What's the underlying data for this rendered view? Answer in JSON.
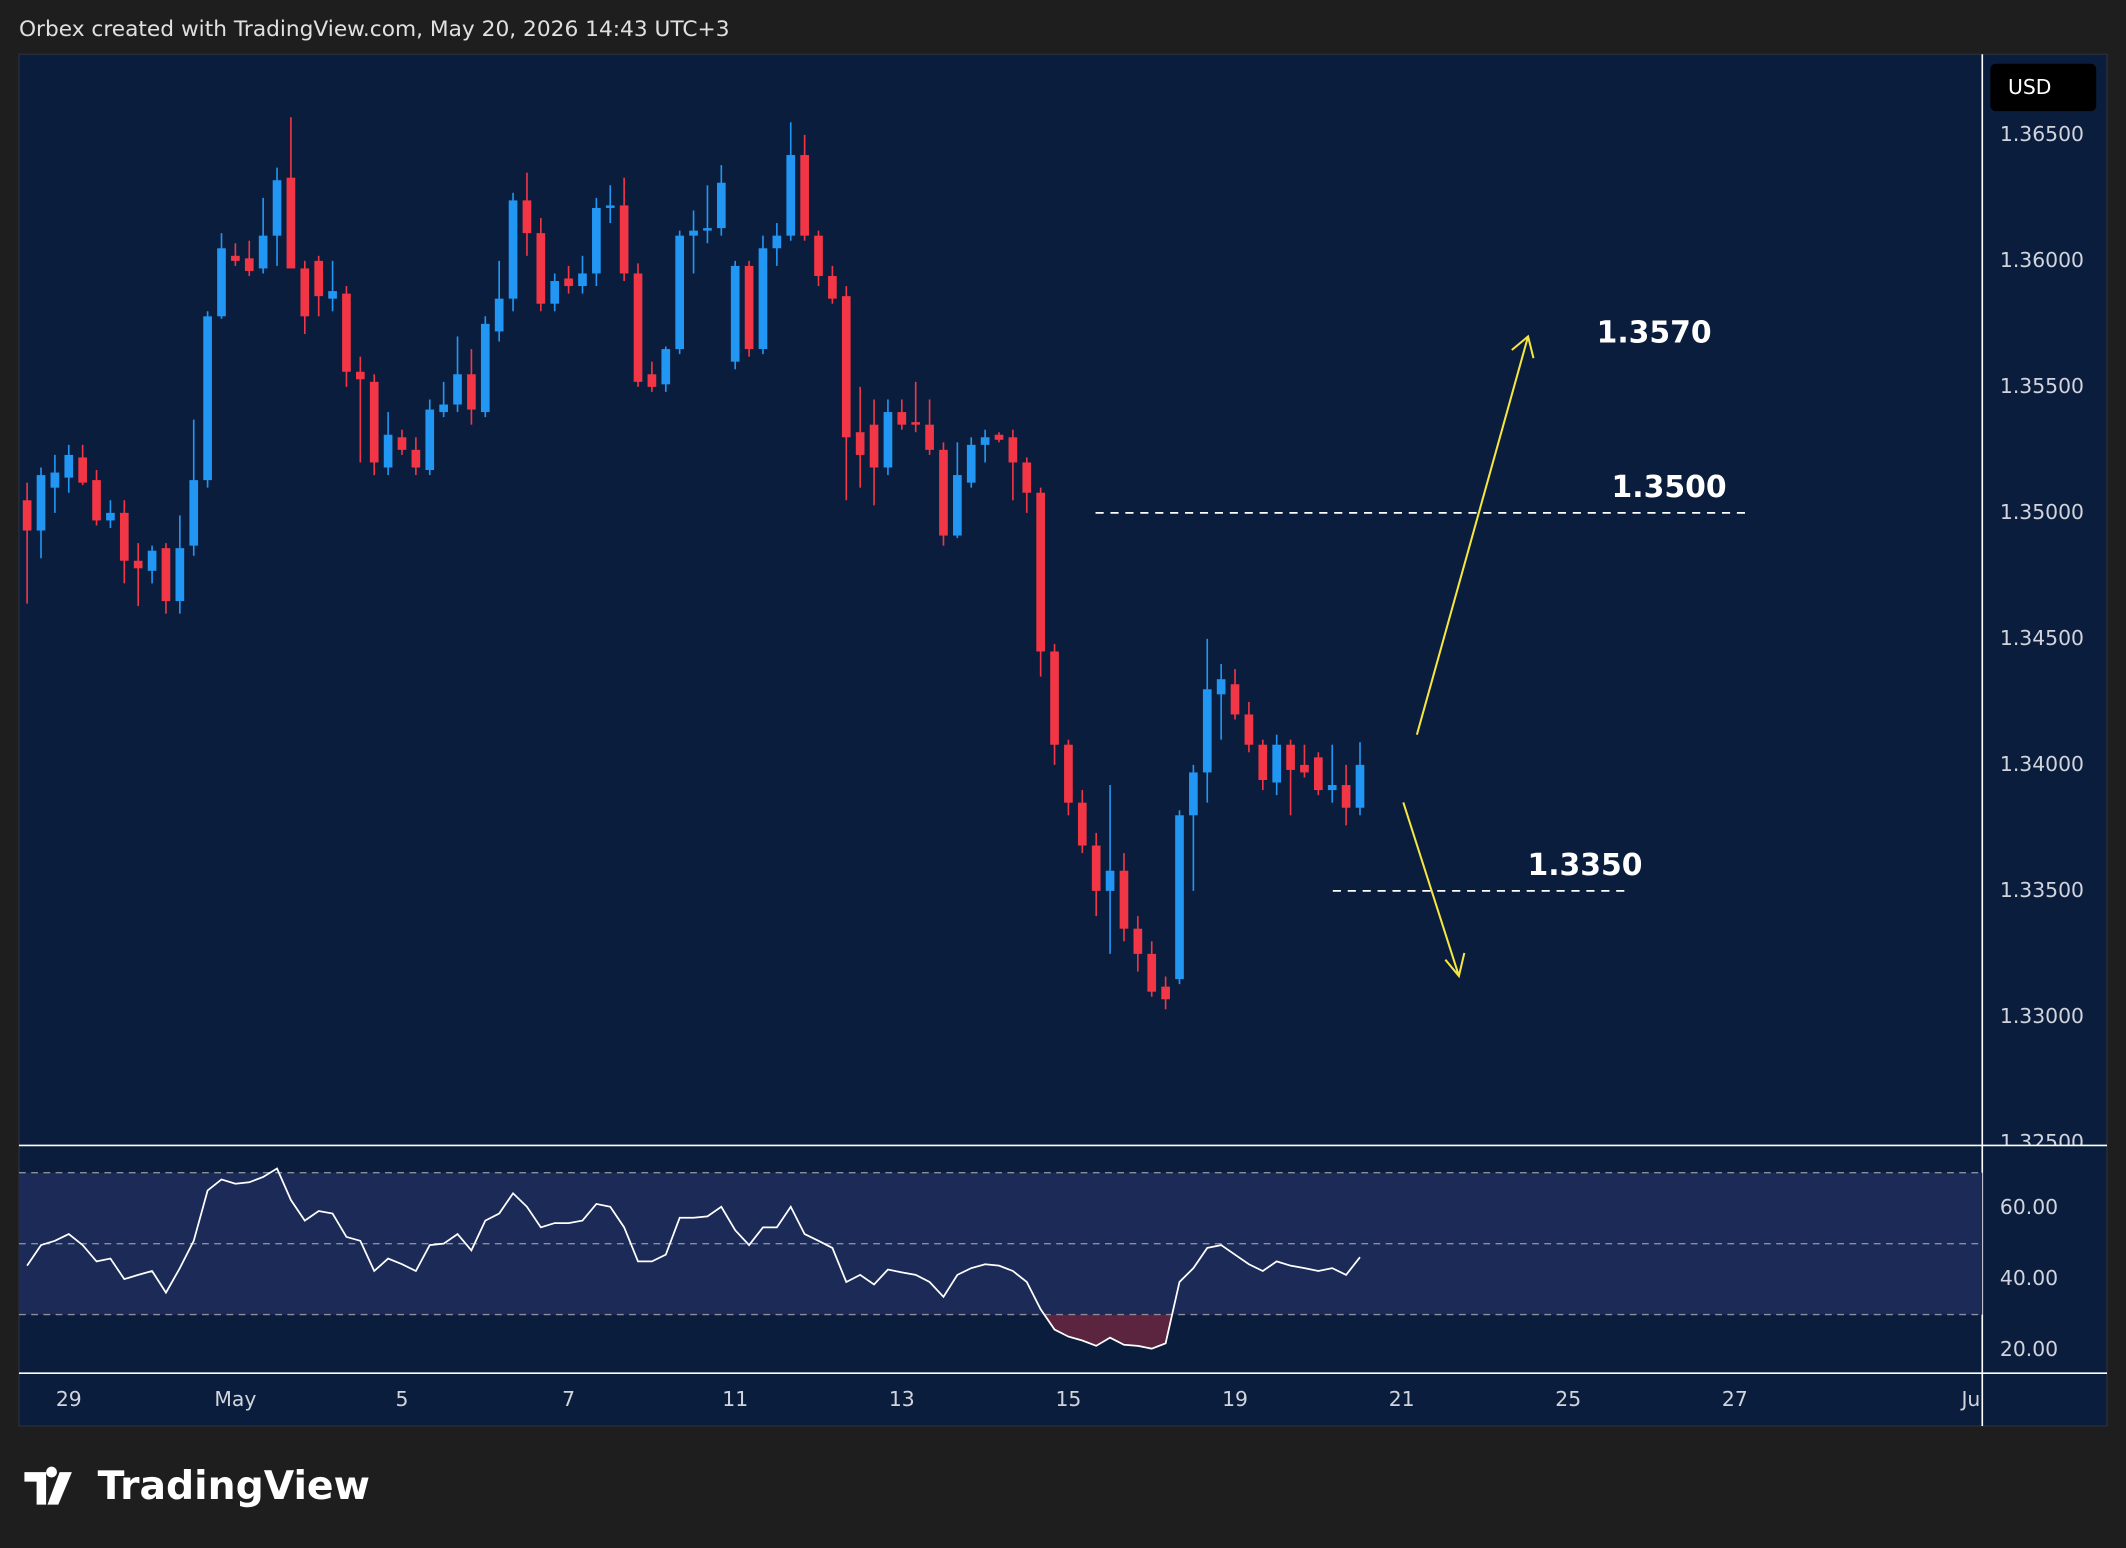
{
  "header": "Orbex created with TradingView.com, May 20, 2026 14:43 UTC+3",
  "brand": "TradingView",
  "chart_data": [
    {
      "type": "candlestick",
      "currency": "USD",
      "up_color": "#2196f3",
      "down_color": "#f23645",
      "open": [
        1.3505,
        1.3493,
        1.351,
        1.3514,
        1.3522,
        1.3513,
        1.3497,
        1.35,
        1.3481,
        1.3477,
        1.3486,
        1.3465,
        1.3487,
        1.3513,
        1.3578,
        1.3602,
        1.3601,
        1.3597,
        1.361,
        1.3633,
        1.3597,
        1.36,
        1.3585,
        1.3587,
        1.3556,
        1.3552,
        1.3518,
        1.353,
        1.3525,
        1.3517,
        1.354,
        1.3543,
        1.3555,
        1.354,
        1.3572,
        1.3585,
        1.3624,
        1.3611,
        1.3583,
        1.3593,
        1.359,
        1.3595,
        1.3621,
        1.3622,
        1.3595,
        1.3555,
        1.3551,
        1.3565,
        1.361,
        1.3612,
        1.3613,
        1.356,
        1.3598,
        1.3565,
        1.3605,
        1.361,
        1.3642,
        1.361,
        1.3594,
        1.3586,
        1.3532,
        1.3535,
        1.3518,
        1.354,
        1.3536,
        1.3535,
        1.3525,
        1.3491,
        1.3512,
        1.3527,
        1.3531,
        1.353,
        1.352,
        1.3508,
        1.3445,
        1.3408,
        1.3385,
        1.3368,
        1.335,
        1.3358,
        1.3335,
        1.3325,
        1.3312,
        1.3315,
        1.338,
        1.3397,
        1.3428,
        1.3432,
        1.342,
        1.3408,
        1.3393,
        1.3408,
        1.34,
        1.3403,
        1.339,
        1.3392,
        1.3383
      ],
      "high": [
        1.3512,
        1.3518,
        1.3523,
        1.3527,
        1.3527,
        1.3517,
        1.3505,
        1.3505,
        1.3488,
        1.3487,
        1.3488,
        1.3499,
        1.3537,
        1.358,
        1.3611,
        1.3607,
        1.3608,
        1.3625,
        1.3637,
        1.3657,
        1.36,
        1.3602,
        1.36,
        1.359,
        1.3562,
        1.3555,
        1.354,
        1.3533,
        1.353,
        1.3545,
        1.3552,
        1.357,
        1.3565,
        1.3578,
        1.36,
        1.3627,
        1.3635,
        1.3617,
        1.3595,
        1.3598,
        1.3602,
        1.3625,
        1.363,
        1.3633,
        1.3599,
        1.356,
        1.3566,
        1.3612,
        1.362,
        1.363,
        1.3638,
        1.36,
        1.36,
        1.361,
        1.3615,
        1.3655,
        1.365,
        1.3612,
        1.3598,
        1.359,
        1.355,
        1.3545,
        1.3545,
        1.3545,
        1.3552,
        1.3545,
        1.3528,
        1.3528,
        1.353,
        1.3533,
        1.3532,
        1.3533,
        1.3522,
        1.351,
        1.3448,
        1.341,
        1.339,
        1.3373,
        1.3392,
        1.3365,
        1.334,
        1.333,
        1.3316,
        1.3382,
        1.34,
        1.345,
        1.344,
        1.3438,
        1.3425,
        1.341,
        1.3412,
        1.341,
        1.3408,
        1.3405,
        1.3408,
        1.34,
        1.3409
      ],
      "low": [
        1.3464,
        1.3482,
        1.35,
        1.3508,
        1.3511,
        1.3495,
        1.3494,
        1.3472,
        1.3463,
        1.3472,
        1.346,
        1.346,
        1.3483,
        1.351,
        1.3577,
        1.3598,
        1.3594,
        1.3595,
        1.3598,
        1.36,
        1.3571,
        1.3578,
        1.358,
        1.355,
        1.352,
        1.3515,
        1.3515,
        1.3523,
        1.3515,
        1.3515,
        1.3538,
        1.354,
        1.3535,
        1.3538,
        1.3568,
        1.358,
        1.3602,
        1.358,
        1.358,
        1.3587,
        1.3587,
        1.359,
        1.3615,
        1.3592,
        1.355,
        1.3548,
        1.3548,
        1.3563,
        1.3595,
        1.3607,
        1.361,
        1.3557,
        1.3562,
        1.3563,
        1.3598,
        1.3608,
        1.3608,
        1.359,
        1.3583,
        1.3505,
        1.351,
        1.3503,
        1.3515,
        1.3533,
        1.3532,
        1.3523,
        1.3487,
        1.349,
        1.351,
        1.352,
        1.3528,
        1.3505,
        1.35,
        1.3435,
        1.34,
        1.338,
        1.3365,
        1.334,
        1.3325,
        1.333,
        1.3318,
        1.3308,
        1.3303,
        1.3313,
        1.335,
        1.3385,
        1.341,
        1.3418,
        1.3405,
        1.339,
        1.3388,
        1.338,
        1.3395,
        1.3388,
        1.3385,
        1.3376,
        1.338
      ],
      "close": [
        1.3493,
        1.3515,
        1.3516,
        1.3523,
        1.3512,
        1.3497,
        1.35,
        1.3481,
        1.3478,
        1.3485,
        1.3465,
        1.3486,
        1.3513,
        1.3578,
        1.3605,
        1.36,
        1.3596,
        1.361,
        1.3632,
        1.3597,
        1.3578,
        1.3586,
        1.3588,
        1.3556,
        1.3553,
        1.352,
        1.3531,
        1.3525,
        1.3518,
        1.3541,
        1.3543,
        1.3555,
        1.3541,
        1.3575,
        1.3585,
        1.3624,
        1.3611,
        1.3583,
        1.3592,
        1.359,
        1.3595,
        1.3621,
        1.3622,
        1.3595,
        1.3552,
        1.355,
        1.3565,
        1.361,
        1.3612,
        1.3613,
        1.3631,
        1.3598,
        1.3565,
        1.3605,
        1.361,
        1.3642,
        1.361,
        1.3594,
        1.3585,
        1.353,
        1.3523,
        1.3518,
        1.354,
        1.3535,
        1.3535,
        1.3525,
        1.3491,
        1.3515,
        1.3527,
        1.353,
        1.3529,
        1.352,
        1.3508,
        1.3445,
        1.3408,
        1.3385,
        1.3368,
        1.335,
        1.3358,
        1.3335,
        1.3325,
        1.331,
        1.3307,
        1.338,
        1.3397,
        1.343,
        1.3434,
        1.342,
        1.3408,
        1.3394,
        1.3408,
        1.3398,
        1.3397,
        1.339,
        1.3392,
        1.3383,
        1.34
      ],
      "ylim": [
        1.3249,
        1.3682
      ],
      "yticks": [
        {
          "value": 1.325,
          "label": "1.32500"
        },
        {
          "value": 1.33,
          "label": "1.33000"
        },
        {
          "value": 1.335,
          "label": "1.33500"
        },
        {
          "value": 1.34,
          "label": "1.34000"
        },
        {
          "value": 1.345,
          "label": "1.34500"
        },
        {
          "value": 1.35,
          "label": "1.35000"
        },
        {
          "value": 1.355,
          "label": "1.35500"
        },
        {
          "value": 1.36,
          "label": "1.36000"
        },
        {
          "value": 1.365,
          "label": "1.36500"
        }
      ],
      "xticks": [
        {
          "value": 3,
          "label": "29"
        },
        {
          "value": 15,
          "label": "May"
        },
        {
          "value": 27,
          "label": "5"
        },
        {
          "value": 39,
          "label": "7"
        },
        {
          "value": 51,
          "label": "11"
        },
        {
          "value": 63,
          "label": "13"
        },
        {
          "value": 75,
          "label": "15"
        },
        {
          "value": 87,
          "label": "19"
        },
        {
          "value": 99,
          "label": "21"
        },
        {
          "value": 111,
          "label": "25"
        },
        {
          "value": 123,
          "label": "27"
        },
        {
          "value": 140,
          "label": "Ju"
        }
      ],
      "levels": [
        {
          "value": 1.35,
          "label": "1.3500"
        },
        {
          "value": 1.335,
          "label": "1.3350"
        }
      ],
      "level_color": "#ffffff",
      "targets": [
        {
          "value": 1.357,
          "label": "1.3570"
        }
      ],
      "arrow_color": "#f5e642"
    },
    {
      "type": "line",
      "color": "#ffffff",
      "oversold_color": "#f23645",
      "values": [
        43.8,
        49.6,
        50.8,
        52.7,
        49.6,
        45,
        45.8,
        40,
        41.2,
        42.3,
        36.2,
        43.1,
        50.8,
        65,
        68.1,
        66.9,
        67.3,
        68.8,
        71.2,
        62.3,
        56.5,
        59.2,
        58.5,
        51.9,
        50.8,
        42.3,
        45.8,
        44.2,
        42.3,
        49.6,
        50,
        52.7,
        48.1,
        56.5,
        58.5,
        64.2,
        60.4,
        54.6,
        55.8,
        55.8,
        56.5,
        61.2,
        60.4,
        54.6,
        45,
        45,
        46.9,
        57.3,
        57.3,
        57.7,
        60.4,
        53.8,
        49.6,
        54.6,
        54.6,
        60.4,
        52.7,
        50.8,
        48.8,
        39.2,
        41.2,
        38.5,
        42.7,
        41.9,
        41.2,
        39.2,
        35,
        41.2,
        43.1,
        44.2,
        43.8,
        42.3,
        39.2,
        31.5,
        25.8,
        23.8,
        22.7,
        21.2,
        23.5,
        21.5,
        21.2,
        20.4,
        21.9,
        39.2,
        43.1,
        48.8,
        49.6,
        46.9,
        44.2,
        42.3,
        45,
        43.8,
        43.1,
        42.3,
        43.1,
        41.2,
        46.2
      ],
      "ylim": [
        13.5,
        77.7
      ],
      "yticks": [
        {
          "value": 20,
          "label": "20.00"
        },
        {
          "value": 40,
          "label": "40.00"
        },
        {
          "value": 60,
          "label": "60.00"
        }
      ],
      "bands": [
        70,
        50,
        30
      ]
    }
  ]
}
